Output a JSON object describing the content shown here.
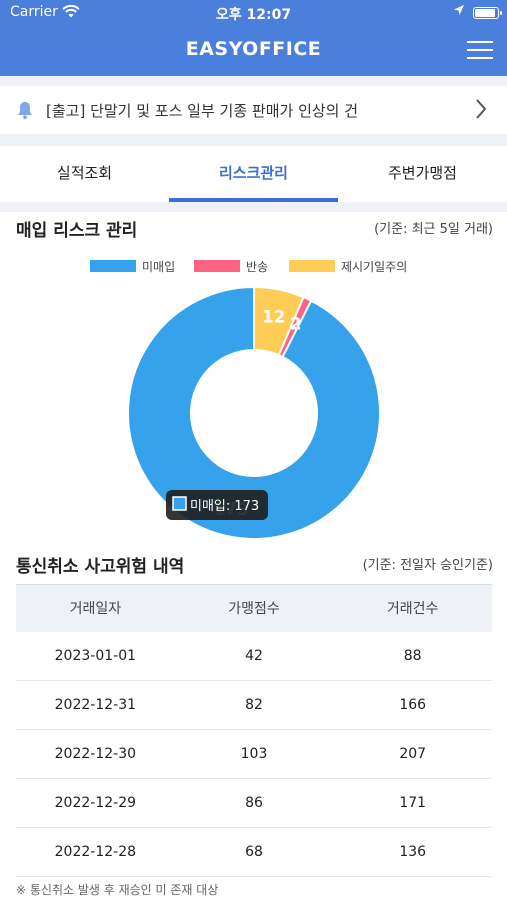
{
  "status_bar": {
    "carrier": "Carrier",
    "time": "오후 12:07",
    "battery_level": 1.0
  },
  "app": {
    "title": "EASYOFFICE"
  },
  "notice": {
    "text": "[출고] 단말기 및 포스 일부 기종 판매가 인상의 건"
  },
  "tabs": [
    {
      "label": "실적조회",
      "active": false
    },
    {
      "label": "리스크관리",
      "active": true
    },
    {
      "label": "주변가맹점",
      "active": false
    }
  ],
  "risk_section": {
    "title": "매입 리스크 관리",
    "note": "(기준: 최근 5일 거래)"
  },
  "chart_data": {
    "type": "pie",
    "donut": true,
    "categories": [
      "미매입",
      "반송",
      "제시기일주의"
    ],
    "values": [
      173,
      2,
      12
    ],
    "colors": [
      "#36a2eb",
      "#ff6384",
      "#ffcd56"
    ],
    "slice_labels": [
      "173",
      "2",
      "12"
    ],
    "tooltip": {
      "label": "미매입: 173",
      "color": "#36a2eb"
    },
    "legend_position": "top"
  },
  "cancel_section": {
    "title": "통신취소 사고위험 내역",
    "note": "(기준: 전일자 승인기준)"
  },
  "table": {
    "headers": [
      "거래일자",
      "가맹점수",
      "거래건수"
    ],
    "rows": [
      [
        "2023-01-01",
        "42",
        "88"
      ],
      [
        "2022-12-31",
        "82",
        "166"
      ],
      [
        "2022-12-30",
        "103",
        "207"
      ],
      [
        "2022-12-29",
        "86",
        "171"
      ],
      [
        "2022-12-28",
        "68",
        "136"
      ]
    ]
  },
  "footnote": "※ 통신취소 발생 후 재승인 미 존재 대상"
}
